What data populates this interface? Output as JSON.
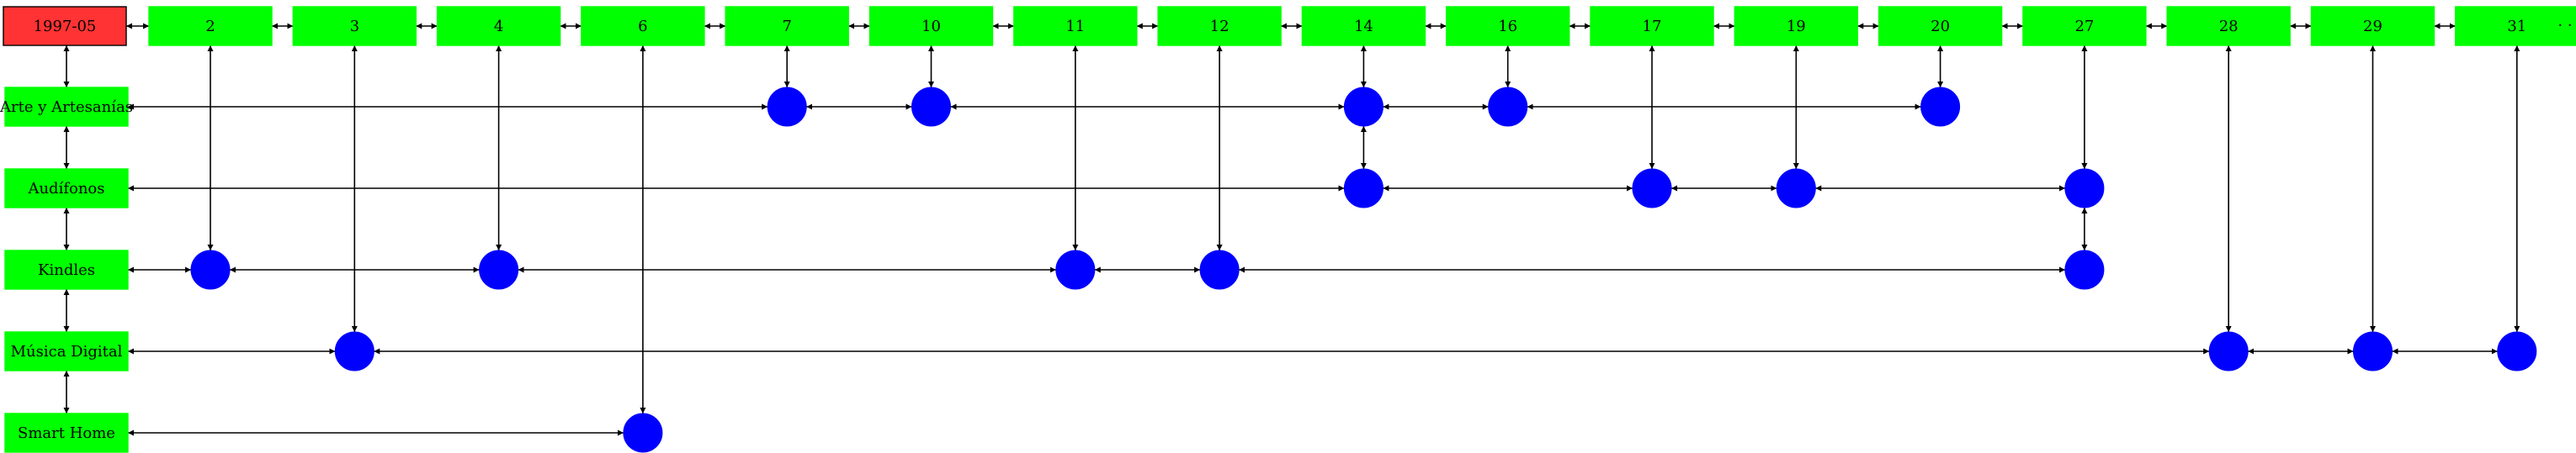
{
  "timeline": {
    "start_label": "1997-05",
    "days": [
      "2",
      "3",
      "4",
      "6",
      "7",
      "10",
      "11",
      "12",
      "14",
      "16",
      "17",
      "19",
      "20",
      "27",
      "28",
      "29",
      "31"
    ],
    "trailing_marker": "· ·"
  },
  "categories": [
    {
      "label": "Arte y Artesanías",
      "events": [
        "7",
        "10",
        "14",
        "16",
        "20"
      ]
    },
    {
      "label": "Audífonos",
      "events": [
        "14",
        "17",
        "19",
        "27"
      ]
    },
    {
      "label": "Kindles",
      "events": [
        "2",
        "4",
        "11",
        "12",
        "27"
      ]
    },
    {
      "label": "Música Digital",
      "events": [
        "3",
        "28",
        "29",
        "31"
      ]
    },
    {
      "label": "Smart Home",
      "events": [
        "6"
      ]
    }
  ],
  "colors": {
    "start_fill": "#ff3333",
    "day_fill": "#00ff00",
    "category_fill": "#00ff00",
    "event_fill": "#0000ff",
    "line": "#000000"
  }
}
